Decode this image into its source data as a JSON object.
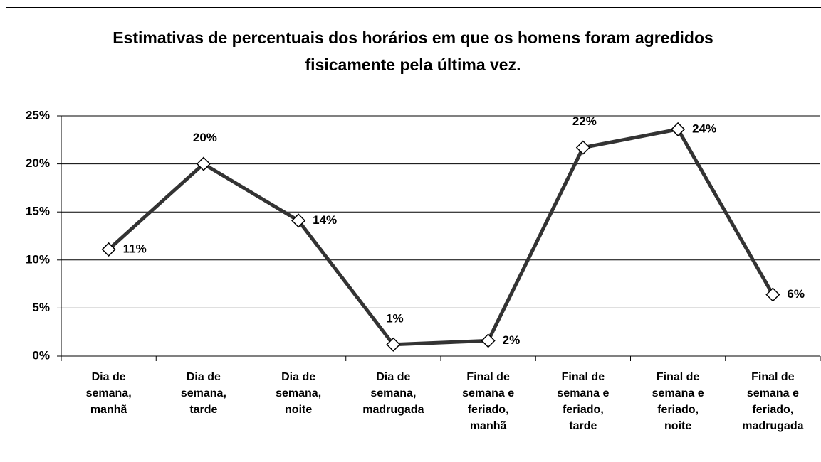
{
  "chart_data": {
    "type": "line",
    "title": "Estimativas de percentuais dos horários em que os homens foram agredidos fisicamente pela última vez.",
    "categories": [
      "Dia de semana, manhã",
      "Dia de semana, tarde",
      "Dia de semana, noite",
      "Dia de semana, madrugada",
      "Final de semana e feriado, manhã",
      "Final de semana e feriado, tarde",
      "Final de semana e feriado, noite",
      "Final de semana e feriado, madrugada"
    ],
    "series": [
      {
        "color": "#333333",
        "values": [
          11.1,
          20.0,
          14.1,
          1.2,
          1.6,
          21.7,
          23.6,
          6.4
        ],
        "value_labels": [
          "11%",
          "20%",
          "14%",
          "1%",
          "2%",
          "22%",
          "24%",
          "6%"
        ]
      }
    ],
    "ylim": [
      0,
      25
    ],
    "yticks": [
      {
        "value": 0,
        "label": "0%"
      },
      {
        "value": 5,
        "label": "5%"
      },
      {
        "value": 10,
        "label": "10%"
      },
      {
        "value": 15,
        "label": "15%"
      },
      {
        "value": 20,
        "label": "20%"
      },
      {
        "value": 25,
        "label": "25%"
      }
    ],
    "grid": true
  }
}
